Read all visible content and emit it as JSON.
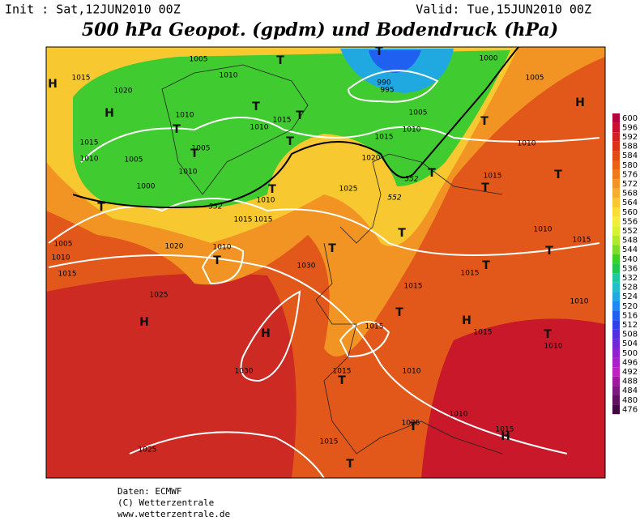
{
  "header": {
    "init": "Init : Sat,12JUN2010 00Z",
    "valid": "Valid: Tue,15JUN2010 00Z",
    "title": "500 hPa Geopot. (gpdm) und Bodendruck (hPa)"
  },
  "colorbar": {
    "levels": [
      600,
      596,
      592,
      588,
      584,
      580,
      576,
      572,
      568,
      564,
      560,
      556,
      552,
      548,
      544,
      540,
      536,
      532,
      528,
      524,
      520,
      516,
      512,
      508,
      504,
      500,
      496,
      492,
      488,
      484,
      480,
      476
    ],
    "colors": [
      "#b4003c",
      "#c8102e",
      "#d42020",
      "#dc3214",
      "#e44a14",
      "#ea6014",
      "#ee7a1c",
      "#f29424",
      "#f6ae2a",
      "#f8c830",
      "#fadc36",
      "#f4ec3a",
      "#d8f032",
      "#b0e82a",
      "#7cdc28",
      "#3cd028",
      "#20c850",
      "#20c8a0",
      "#20c0c8",
      "#20a8e0",
      "#2088f0",
      "#2060f0",
      "#3040e8",
      "#5030e0",
      "#7028d8",
      "#9020d0",
      "#a820c8",
      "#c020c0",
      "#a018a0",
      "#801880",
      "#601060",
      "#400840"
    ]
  },
  "isobars": [
    1005,
    1010,
    1015,
    1020,
    1010,
    1015,
    1010,
    1005,
    1010,
    1005,
    1015,
    1010,
    1000,
    990,
    995,
    1000,
    1005,
    1005,
    1010,
    1015,
    1020,
    1010,
    1015,
    1025,
    1010,
    1015,
    1015,
    1010,
    1020,
    1005,
    1010,
    1015,
    1030,
    1025,
    1015,
    1015,
    1010,
    1015,
    1010,
    1015,
    1015,
    1010,
    1030,
    1015,
    1010,
    1010,
    1025,
    1015,
    1015,
    1025
  ],
  "contours": [
    552,
    552,
    552
  ],
  "systems": [
    "H",
    "H",
    "H",
    "H",
    "H",
    "H",
    "H",
    "T",
    "T",
    "T",
    "T",
    "T",
    "T",
    "T",
    "T",
    "T",
    "T",
    "T",
    "T",
    "T",
    "T",
    "T",
    "T",
    "T",
    "T",
    "T",
    "T",
    "T",
    "T",
    "T"
  ],
  "footer": [
    "Daten: ECMWF",
    "(C) Wetterzentrale",
    "www.wetterzentrale.de"
  ]
}
